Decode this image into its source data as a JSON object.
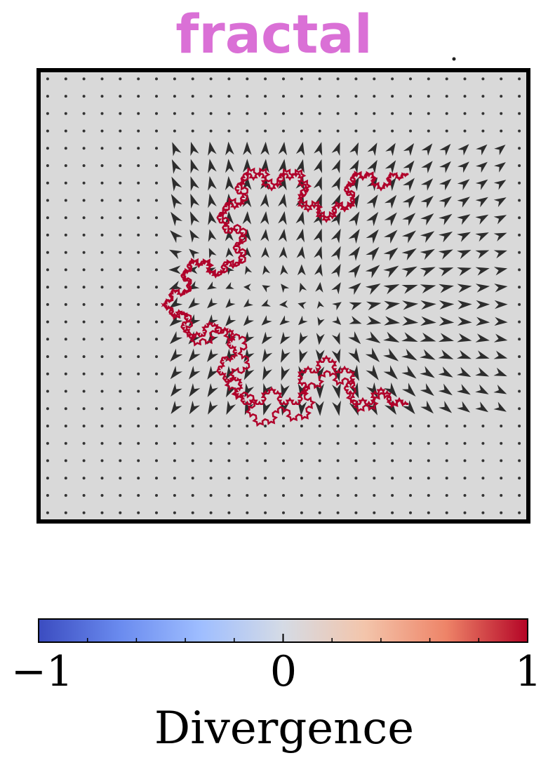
{
  "chart_data": {
    "type": "quiver",
    "title": "fractal",
    "title_color": "#da70d6",
    "background_color": "#d9d9d9",
    "arrow_color": "#1a1a1a",
    "curve_color": "#b0002a",
    "xlim": [
      0,
      1
    ],
    "ylim": [
      0,
      1
    ],
    "grid": false,
    "grid_points": {
      "nx": 27,
      "ny": 26
    },
    "fractal_curve": {
      "name": "koch snowflake",
      "iterations": 4,
      "vertices": [
        [
          0.255,
          0.52
        ],
        [
          0.42,
          0.23
        ],
        [
          0.755,
          0.23
        ],
        [
          0.755,
          0.74
        ],
        [
          0.42,
          0.74
        ]
      ]
    },
    "field_sources": [
      {
        "x": 0.62,
        "y": 0.55,
        "strength": 1.0
      },
      {
        "x": 0.3,
        "y": 0.42,
        "strength": 0.7
      }
    ],
    "colorbar": {
      "label": "Divergence",
      "min": -1,
      "max": 1,
      "ticks": [
        -1,
        0,
        1
      ],
      "tick_labels": [
        "−1",
        "0",
        "1"
      ],
      "colormap": [
        "#3b4cc0",
        "#6a8bef",
        "#9fbeff",
        "#d5dbe5",
        "#f3c5ab",
        "#ee8468",
        "#b40426"
      ]
    }
  }
}
